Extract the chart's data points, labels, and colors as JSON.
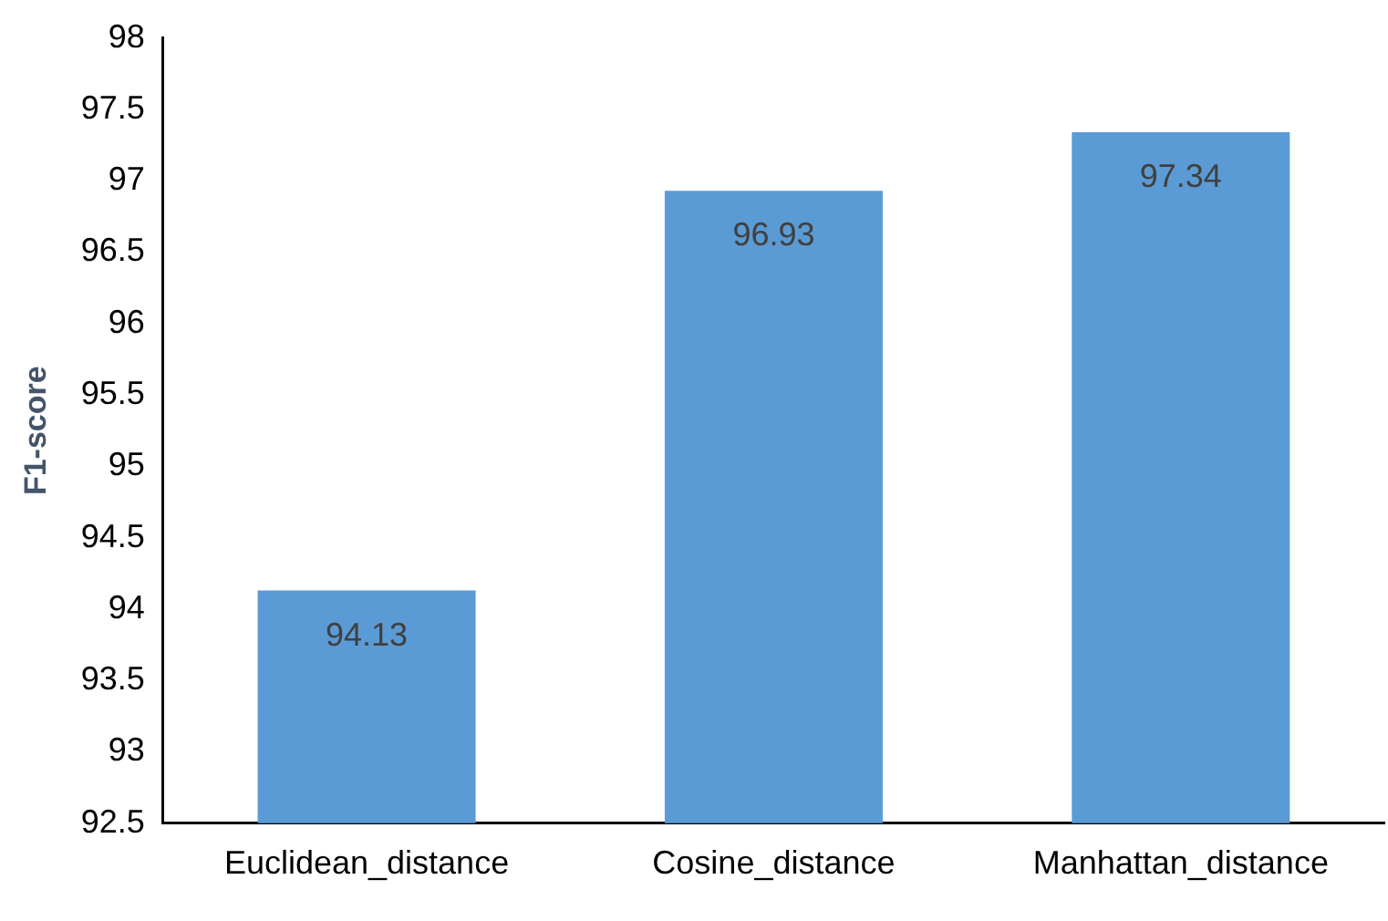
{
  "chart_data": {
    "type": "bar",
    "ylabel": "F1-score",
    "categories": [
      "Euclidean_distance",
      "Cosine_distance",
      "Manhattan_distance"
    ],
    "values": [
      94.13,
      96.93,
      97.34
    ],
    "color": "#5b9bd5",
    "ylim": [
      92.5,
      98
    ],
    "yticks": [
      92.5,
      93,
      93.5,
      94,
      94.5,
      95,
      95.5,
      96,
      96.5,
      97,
      97.5,
      98
    ],
    "grid": false,
    "legend": false,
    "data_labels": true
  }
}
